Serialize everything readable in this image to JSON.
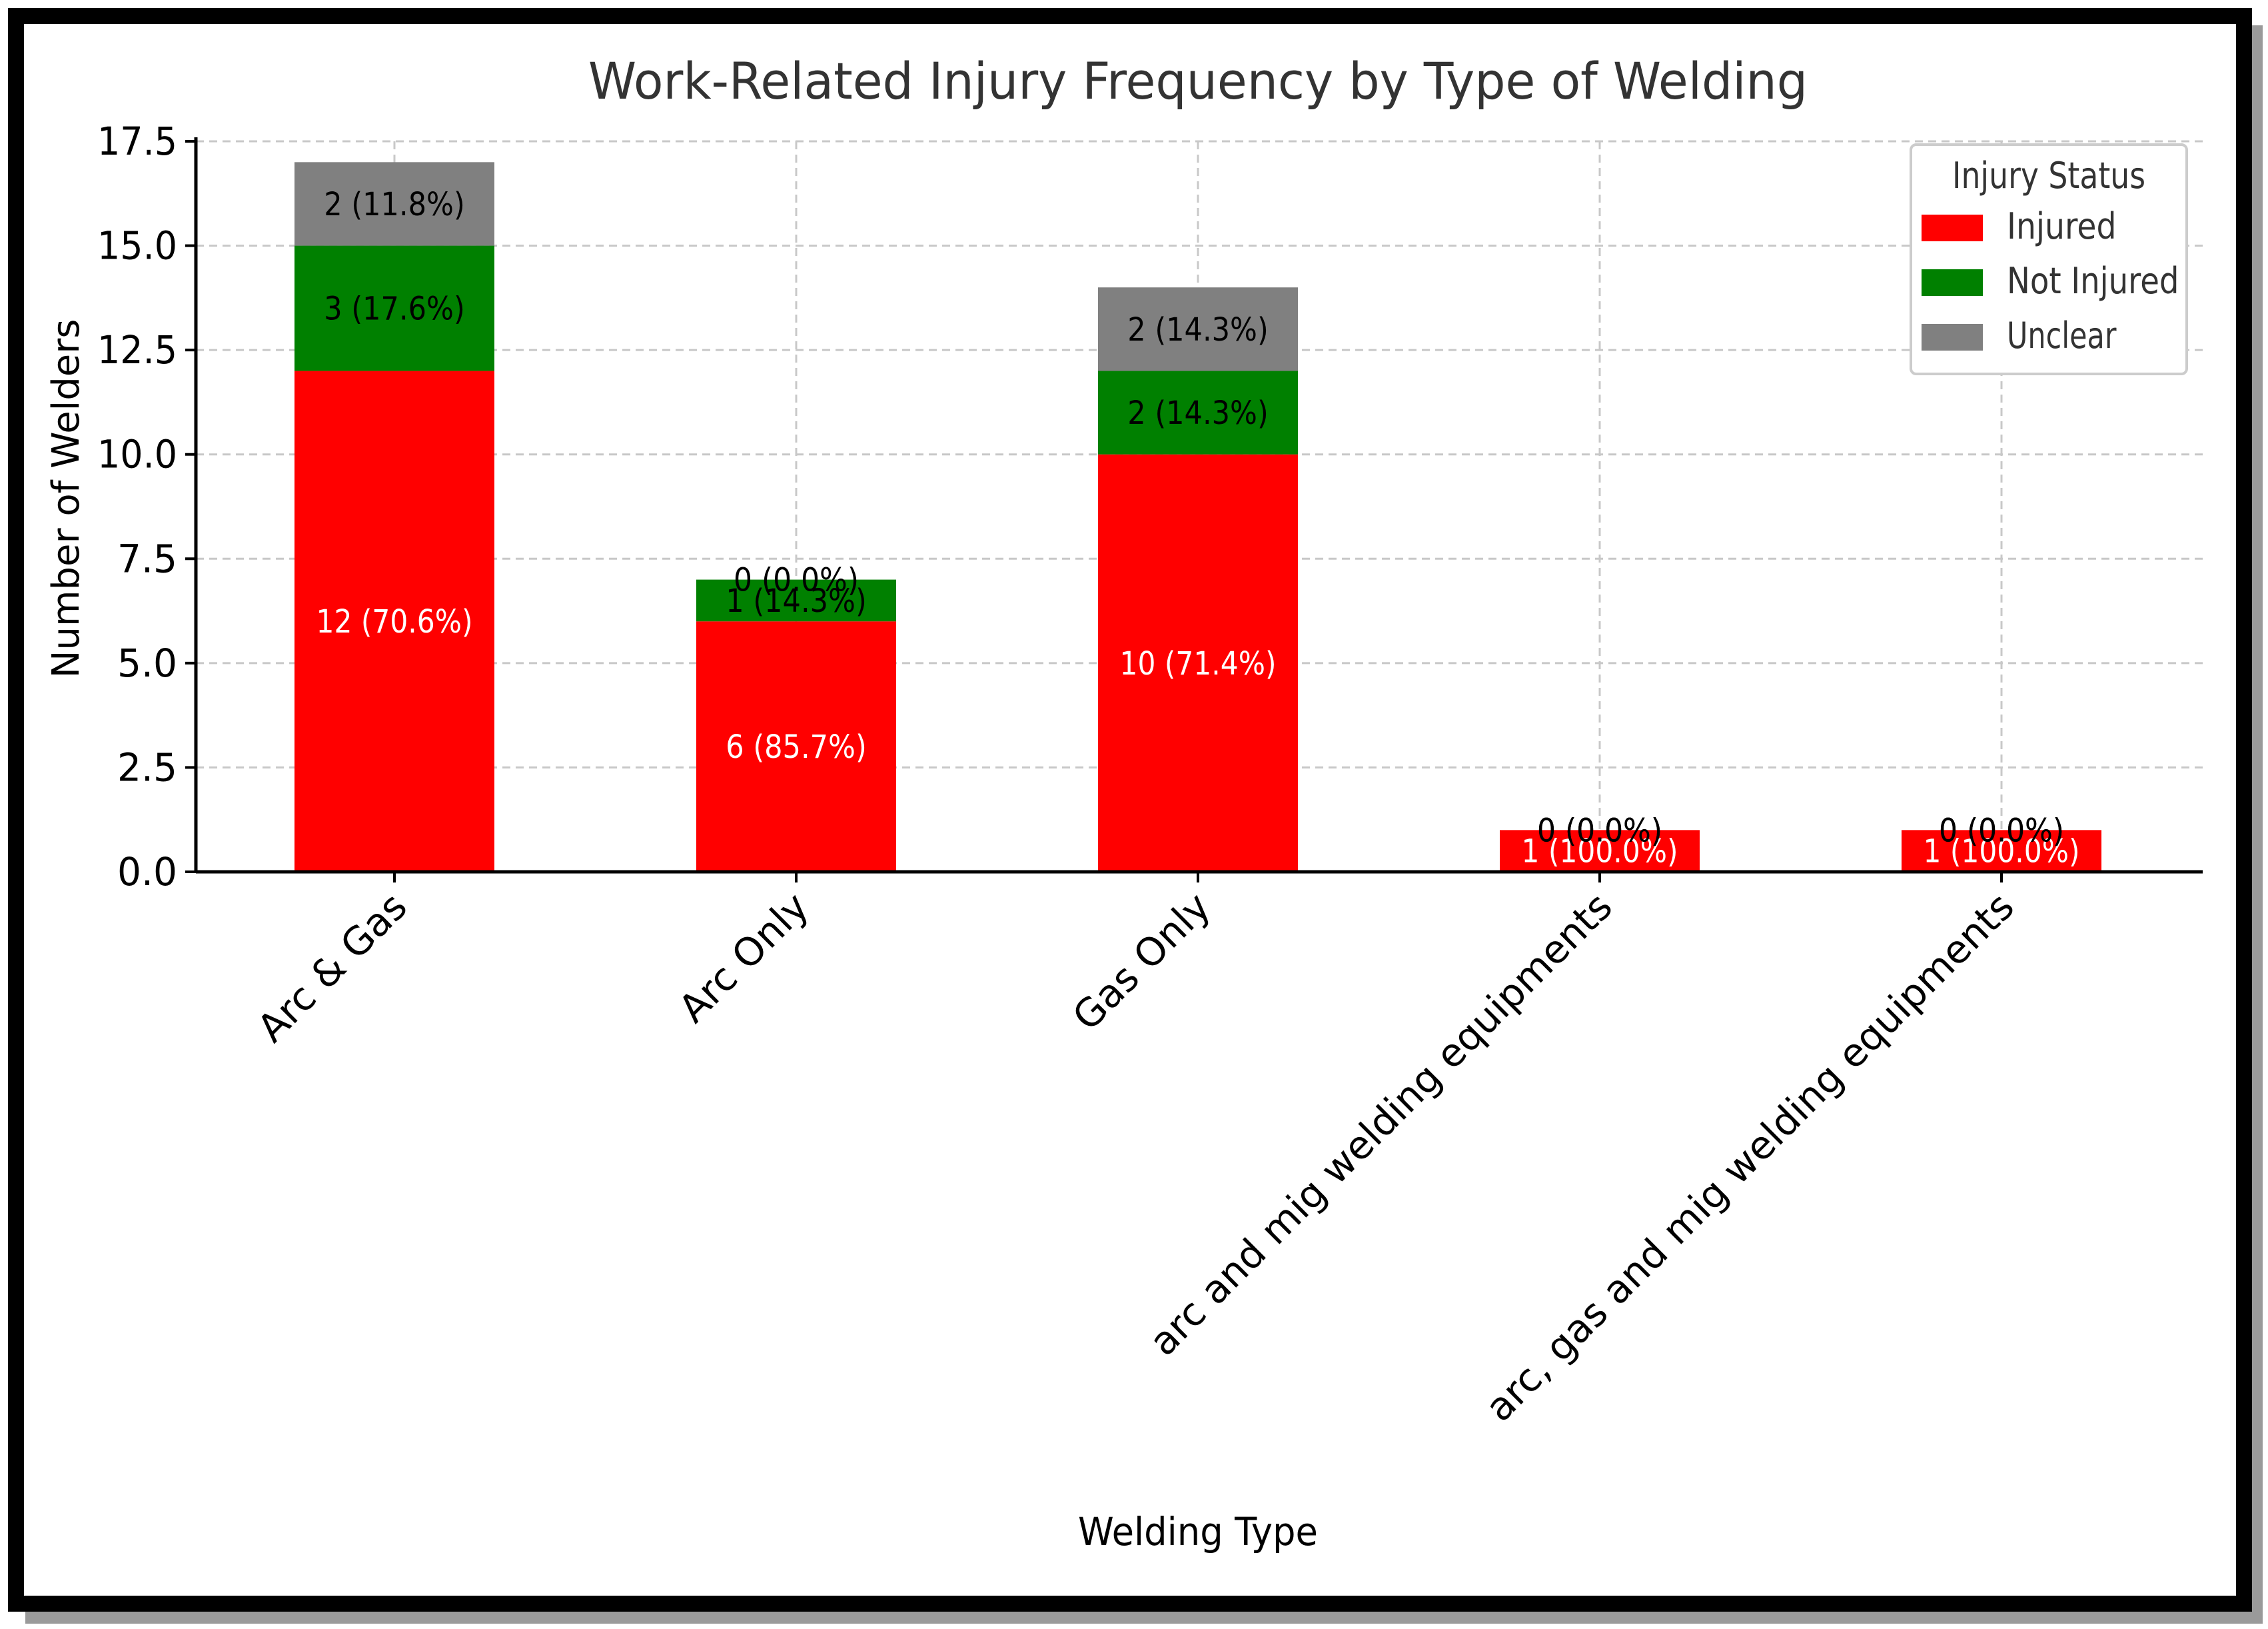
{
  "chart_data": {
    "type": "bar",
    "stacked": true,
    "title": "Work-Related Injury Frequency by Type of Welding",
    "xlabel": "Welding Type",
    "ylabel": "Number of Welders",
    "ylim": [
      0,
      17.5
    ],
    "yticks": [
      0,
      2.5,
      5,
      7.5,
      10,
      12.5,
      15,
      17.5
    ],
    "ytick_labels": [
      "0.0",
      "2.5",
      "5.0",
      "7.5",
      "10.0",
      "12.5",
      "15.0",
      "17.5"
    ],
    "grid": true,
    "categories": [
      "Arc & Gas",
      "Arc Only",
      "Gas Only",
      "arc and mig welding equipments",
      "arc, gas and mig welding equipments"
    ],
    "series": [
      {
        "name": "Injured",
        "color": "#ff0000",
        "label_color": "#ffffff",
        "values": [
          12,
          6,
          10,
          1,
          1
        ],
        "labels": [
          "12 (70.6%)",
          "6 (85.7%)",
          "10 (71.4%)",
          "1 (100.0%)",
          "1 (100.0%)"
        ]
      },
      {
        "name": "Not Injured",
        "color": "#008000",
        "label_color": "#000000",
        "values": [
          3,
          1,
          2,
          0,
          0
        ],
        "labels": [
          "3 (17.6%)",
          "1 (14.3%)",
          "2 (14.3%)",
          "0 (0.0%)",
          "0 (0.0%)"
        ]
      },
      {
        "name": "Unclear",
        "color": "#808080",
        "label_color": "#000000",
        "values": [
          2,
          0,
          2,
          0,
          0
        ],
        "labels": [
          "2 (11.8%)",
          "0 (0.0%)",
          "2 (14.3%)",
          "0 (0.0%)",
          "0 (0.0%)"
        ]
      }
    ],
    "legend": {
      "title": "Injury Status",
      "position": "top-right",
      "entries": [
        "Injured",
        "Not Injured",
        "Unclear"
      ]
    }
  }
}
